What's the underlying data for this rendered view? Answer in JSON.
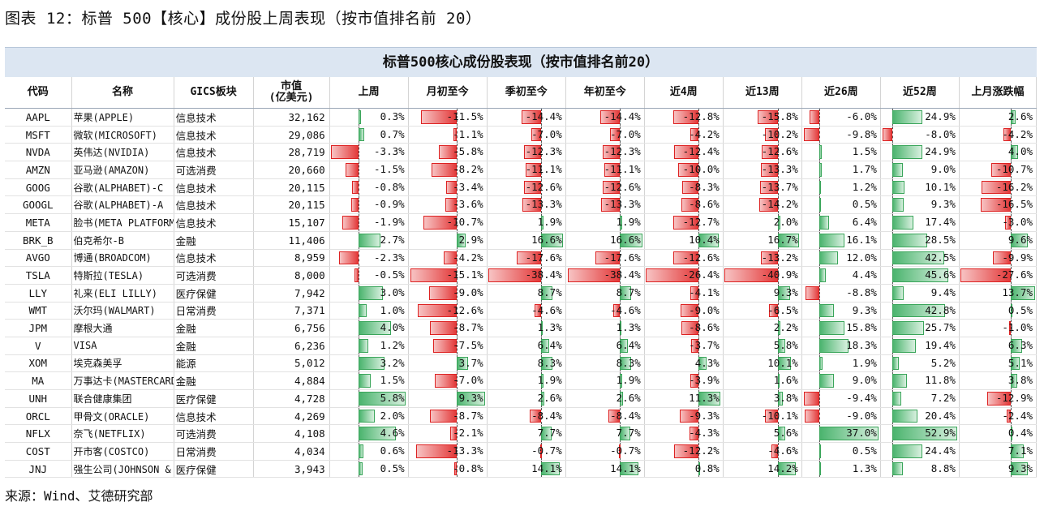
{
  "figure_title": "图表 12：标普 500【核心】成份股上周表现（按市值排名前 20）",
  "table_title": "标普500核心成份股表现（按市值排名前20）",
  "source": "来源：Wind、艾德研究部",
  "colors": {
    "negative": "#e33a3a",
    "positive": "#4bb46e",
    "banner": "#dce6f2"
  },
  "columns": [
    "代码",
    "名称",
    "GICS板块",
    "市值\n(亿美元)",
    "上周",
    "月初至今",
    "季初至今",
    "年初至今",
    "近4周",
    "近13周",
    "近26周",
    "近52周",
    "上月涨跌幅"
  ],
  "rows": [
    {
      "code": "AAPL",
      "name": "苹果(APPLE)",
      "sector": "信息技术",
      "cap": "32,162",
      "perf": [
        "0.3%",
        "-11.5%",
        "-14.4%",
        "-14.4%",
        "-12.8%",
        "-15.8%",
        "-6.0%",
        "24.9%",
        "2.6%"
      ]
    },
    {
      "code": "MSFT",
      "name": "微软(MICROSOFT)",
      "sector": "信息技术",
      "cap": "29,086",
      "perf": [
        "0.7%",
        "-1.1%",
        "-7.0%",
        "-7.0%",
        "-4.2%",
        "-10.2%",
        "-9.8%",
        "-8.0%",
        "-4.2%"
      ]
    },
    {
      "code": "NVDA",
      "name": "英伟达(NVIDIA)",
      "sector": "信息技术",
      "cap": "28,719",
      "perf": [
        "-3.3%",
        "-5.8%",
        "-12.3%",
        "-12.3%",
        "-12.4%",
        "-12.6%",
        "1.5%",
        "24.9%",
        "4.0%"
      ]
    },
    {
      "code": "AMZN",
      "name": "亚马逊(AMAZON)",
      "sector": "可选消费",
      "cap": "20,660",
      "perf": [
        "-1.5%",
        "-8.2%",
        "-11.1%",
        "-11.1%",
        "-10.0%",
        "-13.3%",
        "1.7%",
        "9.0%",
        "-10.7%"
      ]
    },
    {
      "code": "GOOG",
      "name": "谷歌(ALPHABET)-C",
      "sector": "信息技术",
      "cap": "20,115",
      "perf": [
        "-0.8%",
        "-3.4%",
        "-12.6%",
        "-12.6%",
        "-8.3%",
        "-13.7%",
        "1.2%",
        "10.1%",
        "-16.2%"
      ]
    },
    {
      "code": "GOOGL",
      "name": "谷歌(ALPHABET)-A",
      "sector": "信息技术",
      "cap": "20,115",
      "perf": [
        "-0.9%",
        "-3.6%",
        "-13.3%",
        "-13.3%",
        "-8.6%",
        "-14.2%",
        "0.5%",
        "9.3%",
        "-16.5%"
      ]
    },
    {
      "code": "META",
      "name": "脸书(META PLATFORMS)",
      "sector": "信息技术",
      "cap": "15,107",
      "perf": [
        "-1.9%",
        "-10.7%",
        "1.9%",
        "1.9%",
        "-12.7%",
        "2.0%",
        "6.4%",
        "17.4%",
        "-3.0%"
      ]
    },
    {
      "code": "BRK_B",
      "name": "伯克希尔-B",
      "sector": "金融",
      "cap": "11,406",
      "perf": [
        "2.7%",
        "2.9%",
        "16.6%",
        "16.6%",
        "10.4%",
        "16.7%",
        "16.1%",
        "28.5%",
        "9.6%"
      ]
    },
    {
      "code": "AVGO",
      "name": "博通(BROADCOM)",
      "sector": "信息技术",
      "cap": "8,959",
      "perf": [
        "-2.3%",
        "-4.2%",
        "-17.6%",
        "-17.6%",
        "-12.6%",
        "-13.2%",
        "12.0%",
        "42.5%",
        "-9.9%"
      ]
    },
    {
      "code": "TSLA",
      "name": "特斯拉(TESLA)",
      "sector": "可选消费",
      "cap": "8,000",
      "perf": [
        "-0.5%",
        "-15.1%",
        "-38.4%",
        "-38.4%",
        "-26.4%",
        "-40.9%",
        "4.4%",
        "45.6%",
        "-27.6%"
      ]
    },
    {
      "code": "LLY",
      "name": "礼来(ELI LILLY)",
      "sector": "医疗保健",
      "cap": "7,942",
      "perf": [
        "3.0%",
        "-9.0%",
        "8.7%",
        "8.7%",
        "-4.1%",
        "9.3%",
        "-8.8%",
        "9.4%",
        "13.7%"
      ]
    },
    {
      "code": "WMT",
      "name": "沃尔玛(WALMART)",
      "sector": "日常消费",
      "cap": "7,371",
      "perf": [
        "1.0%",
        "-12.6%",
        "-4.6%",
        "-4.6%",
        "-9.0%",
        "-6.5%",
        "9.3%",
        "42.8%",
        "0.5%"
      ]
    },
    {
      "code": "JPM",
      "name": "摩根大通",
      "sector": "金融",
      "cap": "6,756",
      "perf": [
        "4.0%",
        "-8.7%",
        "1.3%",
        "1.3%",
        "-8.6%",
        "2.2%",
        "15.8%",
        "25.7%",
        "-1.0%"
      ]
    },
    {
      "code": "V",
      "name": "VISA",
      "sector": "金融",
      "cap": "6,236",
      "perf": [
        "1.2%",
        "-7.5%",
        "6.4%",
        "6.4%",
        "-3.7%",
        "5.8%",
        "18.3%",
        "19.4%",
        "6.3%"
      ]
    },
    {
      "code": "XOM",
      "name": "埃克森美孚",
      "sector": "能源",
      "cap": "5,012",
      "perf": [
        "3.2%",
        "3.7%",
        "8.3%",
        "8.3%",
        "4.3%",
        "10.1%",
        "1.9%",
        "5.2%",
        "5.1%"
      ]
    },
    {
      "code": "MA",
      "name": "万事达卡(MASTERCARD)",
      "sector": "金融",
      "cap": "4,884",
      "perf": [
        "1.5%",
        "-7.0%",
        "1.9%",
        "1.9%",
        "-3.9%",
        "1.6%",
        "9.0%",
        "11.8%",
        "3.8%"
      ]
    },
    {
      "code": "UNH",
      "name": "联合健康集团",
      "sector": "医疗保健",
      "cap": "4,728",
      "perf": [
        "5.8%",
        "9.3%",
        "2.6%",
        "2.6%",
        "11.3%",
        "3.8%",
        "-9.4%",
        "7.2%",
        "-12.9%"
      ]
    },
    {
      "code": "ORCL",
      "name": "甲骨文(ORACLE)",
      "sector": "信息技术",
      "cap": "4,269",
      "perf": [
        "2.0%",
        "-8.7%",
        "-8.4%",
        "-8.4%",
        "-9.3%",
        "-10.1%",
        "-9.0%",
        "20.4%",
        "-2.4%"
      ]
    },
    {
      "code": "NFLX",
      "name": "奈飞(NETFLIX)",
      "sector": "可选消费",
      "cap": "4,108",
      "perf": [
        "4.6%",
        "-2.1%",
        "7.7%",
        "7.7%",
        "-4.3%",
        "5.6%",
        "37.0%",
        "52.9%",
        "0.4%"
      ]
    },
    {
      "code": "COST",
      "name": "开市客(COSTCO)",
      "sector": "日常消费",
      "cap": "4,034",
      "perf": [
        "0.6%",
        "-13.3%",
        "-0.7%",
        "-0.7%",
        "-12.2%",
        "-4.6%",
        "0.5%",
        "24.4%",
        "7.1%"
      ]
    },
    {
      "code": "JNJ",
      "name": "强生公司(JOHNSON & JOHNSON)",
      "sector": "医疗保健",
      "cap": "3,943",
      "perf": [
        "0.5%",
        "-0.8%",
        "14.1%",
        "14.1%",
        "0.8%",
        "14.2%",
        "1.3%",
        "8.8%",
        "9.3%"
      ]
    }
  ]
}
